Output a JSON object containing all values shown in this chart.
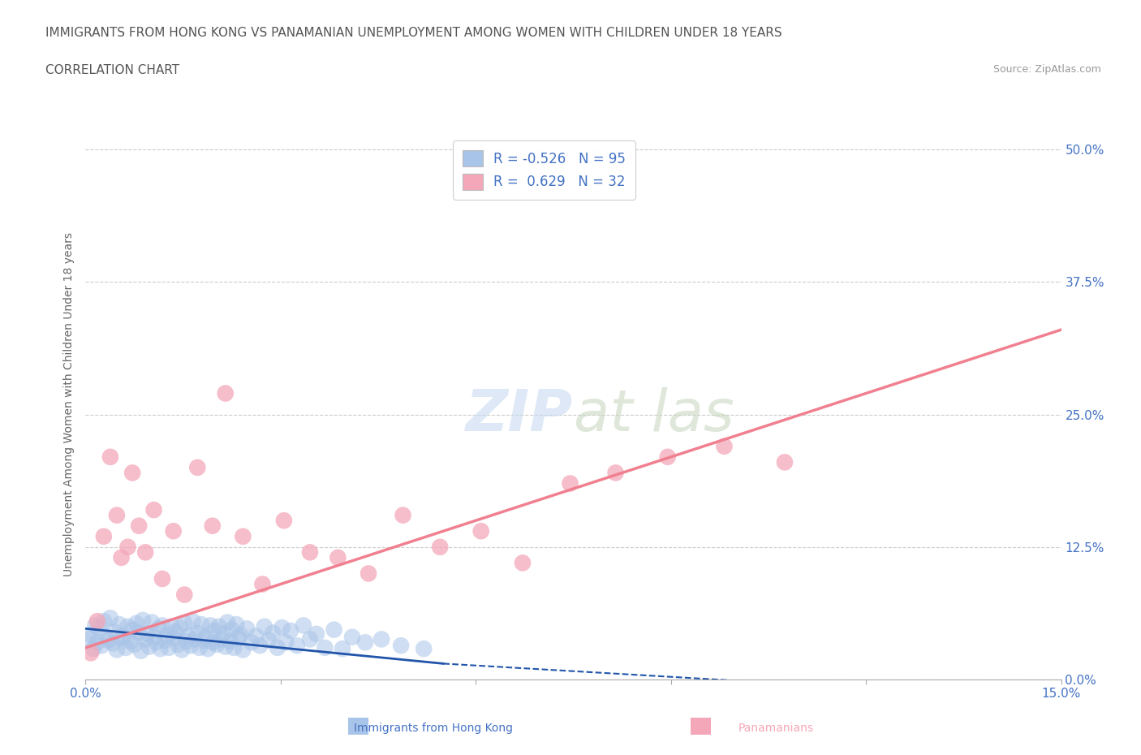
{
  "title_line1": "IMMIGRANTS FROM HONG KONG VS PANAMANIAN UNEMPLOYMENT AMONG WOMEN WITH CHILDREN UNDER 18 YEARS",
  "title_line2": "CORRELATION CHART",
  "source": "Source: ZipAtlas.com",
  "xlabel_hk": "Immigrants from Hong Kong",
  "xlabel_pan": "Panamanians",
  "ylabel": "Unemployment Among Women with Children Under 18 years",
  "x_tick_vals": [
    0.0,
    3.0,
    6.0,
    9.0,
    12.0,
    15.0
  ],
  "y_tick_vals": [
    0.0,
    12.5,
    25.0,
    37.5,
    50.0
  ],
  "hk_color": "#a8c4e8",
  "pan_color": "#f4a7b9",
  "hk_line_color": "#2255aa",
  "pan_line_color": "#f08090",
  "hk_R": -0.526,
  "hk_N": 95,
  "pan_R": 0.629,
  "pan_N": 32,
  "bg_color": "#ffffff",
  "grid_color": "#cccccc",
  "title_color": "#666666",
  "axis_label_color": "#4472c4",
  "pan_label_color": "#f4a7b9",
  "hk_scatter_x": [
    0.05,
    0.08,
    0.12,
    0.15,
    0.18,
    0.22,
    0.25,
    0.28,
    0.32,
    0.35,
    0.38,
    0.42,
    0.45,
    0.48,
    0.52,
    0.55,
    0.58,
    0.62,
    0.65,
    0.68,
    0.72,
    0.75,
    0.78,
    0.82,
    0.85,
    0.88,
    0.92,
    0.95,
    0.98,
    1.02,
    1.05,
    1.08,
    1.12,
    1.15,
    1.18,
    1.22,
    1.25,
    1.28,
    1.32,
    1.35,
    1.38,
    1.42,
    1.45,
    1.48,
    1.52,
    1.55,
    1.58,
    1.62,
    1.65,
    1.68,
    1.72,
    1.75,
    1.78,
    1.82,
    1.85,
    1.88,
    1.92,
    1.95,
    1.98,
    2.02,
    2.05,
    2.08,
    2.12,
    2.15,
    2.18,
    2.22,
    2.25,
    2.28,
    2.32,
    2.35,
    2.38,
    2.42,
    2.48,
    2.55,
    2.62,
    2.68,
    2.75,
    2.82,
    2.88,
    2.95,
    3.02,
    3.08,
    3.15,
    3.25,
    3.35,
    3.45,
    3.55,
    3.68,
    3.82,
    3.95,
    4.1,
    4.3,
    4.55,
    4.85,
    5.2
  ],
  "hk_scatter_y": [
    3.8,
    4.2,
    2.9,
    5.1,
    3.5,
    4.8,
    3.2,
    5.5,
    4.0,
    3.7,
    5.8,
    3.4,
    4.5,
    2.8,
    5.2,
    3.9,
    4.1,
    3.0,
    5.0,
    3.6,
    4.7,
    3.3,
    5.3,
    4.4,
    2.7,
    5.6,
    3.8,
    4.3,
    3.1,
    5.4,
    4.0,
    3.5,
    4.8,
    2.9,
    5.1,
    3.7,
    4.2,
    3.0,
    5.0,
    3.9,
    4.5,
    3.3,
    4.9,
    2.8,
    5.3,
    3.6,
    4.1,
    3.2,
    5.5,
    3.8,
    4.4,
    3.0,
    5.2,
    3.7,
    4.0,
    2.9,
    5.1,
    3.5,
    4.6,
    3.3,
    5.0,
    3.8,
    4.3,
    3.1,
    5.4,
    3.6,
    4.7,
    3.0,
    5.2,
    3.9,
    4.2,
    2.8,
    4.8,
    3.5,
    4.1,
    3.2,
    5.0,
    3.7,
    4.4,
    3.0,
    4.9,
    3.5,
    4.6,
    3.2,
    5.1,
    3.8,
    4.3,
    3.0,
    4.7,
    2.9,
    4.0,
    3.5,
    3.8,
    3.2,
    2.9
  ],
  "pan_scatter_x": [
    0.08,
    0.18,
    0.28,
    0.38,
    0.48,
    0.55,
    0.65,
    0.72,
    0.82,
    0.92,
    1.05,
    1.18,
    1.35,
    1.52,
    1.72,
    1.95,
    2.15,
    2.42,
    2.72,
    3.05,
    3.45,
    3.88,
    4.35,
    4.88,
    5.45,
    6.08,
    6.72,
    7.45,
    8.15,
    8.95,
    9.82,
    10.75
  ],
  "pan_scatter_y": [
    2.5,
    5.5,
    13.5,
    21.0,
    15.5,
    11.5,
    12.5,
    19.5,
    14.5,
    12.0,
    16.0,
    9.5,
    14.0,
    8.0,
    20.0,
    14.5,
    27.0,
    13.5,
    9.0,
    15.0,
    12.0,
    11.5,
    10.0,
    15.5,
    12.5,
    14.0,
    11.0,
    18.5,
    19.5,
    21.0,
    22.0,
    20.5
  ],
  "hk_trend_x0": 0.0,
  "hk_trend_x1": 5.5,
  "hk_trend_y0": 4.8,
  "hk_trend_y1": 1.5,
  "hk_trend_dash_x0": 5.5,
  "hk_trend_dash_x1": 12.5,
  "hk_trend_dash_y0": 1.5,
  "hk_trend_dash_y1": -1.0,
  "pan_trend_x0": 0.0,
  "pan_trend_x1": 15.0,
  "pan_trend_y0": 3.0,
  "pan_trend_y1": 33.0,
  "xlim": [
    0,
    15
  ],
  "ylim": [
    0,
    52
  ]
}
